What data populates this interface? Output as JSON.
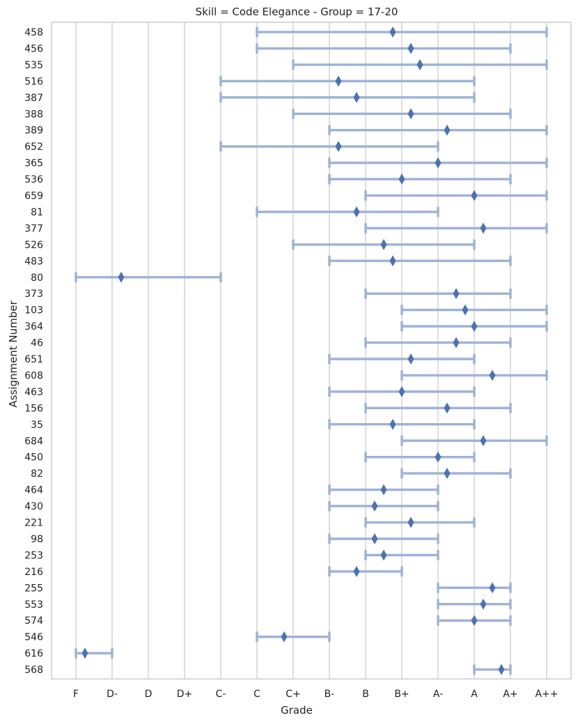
{
  "chart_data": {
    "type": "interval",
    "title": "Skill = Code Elegance - Group = 17-20",
    "xlabel": "Grade",
    "ylabel": "Assignment Number",
    "x_categories": [
      "F",
      "D-",
      "D",
      "D+",
      "C-",
      "C",
      "C+",
      "B-",
      "B",
      "B+",
      "A-",
      "A",
      "A+",
      "A++"
    ],
    "grid": "vertical",
    "colors": {
      "range_line": "#9fb3d6",
      "marker": "#4c72b0",
      "grid": "#cccccc",
      "frame": "#cccccc"
    },
    "rows": [
      {
        "label": "458",
        "low": 5,
        "mean": 8.75,
        "high": 13
      },
      {
        "label": "456",
        "low": 5,
        "mean": 9.25,
        "high": 12
      },
      {
        "label": "535",
        "low": 6,
        "mean": 9.5,
        "high": 13
      },
      {
        "label": "516",
        "low": 4,
        "mean": 7.25,
        "high": 11
      },
      {
        "label": "387",
        "low": 4,
        "mean": 7.75,
        "high": 11
      },
      {
        "label": "388",
        "low": 6,
        "mean": 9.25,
        "high": 12
      },
      {
        "label": "389",
        "low": 7,
        "mean": 10.25,
        "high": 13
      },
      {
        "label": "652",
        "low": 4,
        "mean": 7.25,
        "high": 10
      },
      {
        "label": "365",
        "low": 7,
        "mean": 10,
        "high": 13
      },
      {
        "label": "536",
        "low": 7,
        "mean": 9,
        "high": 12
      },
      {
        "label": "659",
        "low": 8,
        "mean": 11,
        "high": 13
      },
      {
        "label": "81",
        "low": 5,
        "mean": 7.75,
        "high": 10
      },
      {
        "label": "377",
        "low": 8,
        "mean": 11.25,
        "high": 13
      },
      {
        "label": "526",
        "low": 6,
        "mean": 8.5,
        "high": 11
      },
      {
        "label": "483",
        "low": 7,
        "mean": 8.75,
        "high": 12
      },
      {
        "label": "80",
        "low": 0,
        "mean": 1.25,
        "high": 4
      },
      {
        "label": "373",
        "low": 8,
        "mean": 10.5,
        "high": 12
      },
      {
        "label": "103",
        "low": 9,
        "mean": 10.75,
        "high": 13
      },
      {
        "label": "364",
        "low": 9,
        "mean": 11,
        "high": 13
      },
      {
        "label": "46",
        "low": 8,
        "mean": 10.5,
        "high": 12
      },
      {
        "label": "651",
        "low": 7,
        "mean": 9.25,
        "high": 11
      },
      {
        "label": "608",
        "low": 9,
        "mean": 11.5,
        "high": 13
      },
      {
        "label": "463",
        "low": 7,
        "mean": 9,
        "high": 11
      },
      {
        "label": "156",
        "low": 8,
        "mean": 10.25,
        "high": 12
      },
      {
        "label": "35",
        "low": 7,
        "mean": 8.75,
        "high": 11
      },
      {
        "label": "684",
        "low": 9,
        "mean": 11.25,
        "high": 13
      },
      {
        "label": "450",
        "low": 8,
        "mean": 10,
        "high": 11
      },
      {
        "label": "82",
        "low": 9,
        "mean": 10.25,
        "high": 12
      },
      {
        "label": "464",
        "low": 7,
        "mean": 8.5,
        "high": 10
      },
      {
        "label": "430",
        "low": 7,
        "mean": 8.25,
        "high": 10
      },
      {
        "label": "221",
        "low": 8,
        "mean": 9.25,
        "high": 11
      },
      {
        "label": "98",
        "low": 7,
        "mean": 8.25,
        "high": 10
      },
      {
        "label": "253",
        "low": 8,
        "mean": 8.5,
        "high": 10
      },
      {
        "label": "216",
        "low": 7,
        "mean": 7.75,
        "high": 9
      },
      {
        "label": "255",
        "low": 10,
        "mean": 11.5,
        "high": 12
      },
      {
        "label": "553",
        "low": 10,
        "mean": 11.25,
        "high": 12
      },
      {
        "label": "574",
        "low": 10,
        "mean": 11,
        "high": 12
      },
      {
        "label": "546",
        "low": 5,
        "mean": 5.75,
        "high": 7
      },
      {
        "label": "616",
        "low": 0,
        "mean": 0.25,
        "high": 1
      },
      {
        "label": "568",
        "low": 11,
        "mean": 11.75,
        "high": 12
      }
    ]
  }
}
